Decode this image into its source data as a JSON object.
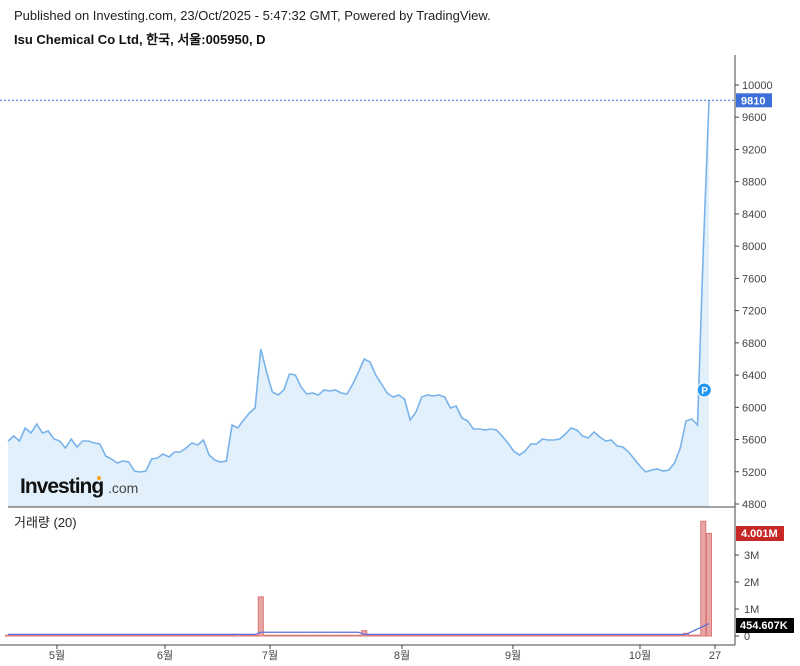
{
  "header": {
    "published": "Published on Investing.com, 23/Oct/2025 - 5:47:32 GMT, Powered by TradingView.",
    "title": "Isu Chemical Co Ltd, 한국, 서울:005950, D"
  },
  "logo": {
    "text": "Investing",
    "suffix": ".com"
  },
  "colors": {
    "line": "#7ab3ea",
    "fill": "#e1f0fa",
    "last_price_label": "#3d6fd8",
    "volume_bar": "#e8a7a7",
    "volume_label": "#c62828",
    "volume_ma": "#5a6fd8"
  },
  "chart_data": [
    {
      "type": "area",
      "ylim": [
        4800,
        10000
      ],
      "yticks": [
        4800,
        5200,
        5600,
        6000,
        6400,
        6800,
        7200,
        7600,
        8000,
        8400,
        8800,
        9200,
        9600,
        10000
      ],
      "xticks": [
        "5월",
        "6월",
        "7월",
        "8월",
        "9월",
        "10월",
        "27"
      ],
      "last_value_label": "9810",
      "marker": "P",
      "values": [
        5580,
        5644,
        5580,
        5743,
        5681,
        5793,
        5681,
        5706,
        5607,
        5582,
        5495,
        5607,
        5507,
        5582,
        5582,
        5557,
        5545,
        5396,
        5358,
        5309,
        5334,
        5321,
        5210,
        5197,
        5210,
        5358,
        5371,
        5420,
        5383,
        5445,
        5445,
        5495,
        5557,
        5532,
        5594,
        5408,
        5346,
        5321,
        5334,
        5780,
        5743,
        5842,
        5929,
        5991,
        6724,
        6438,
        6190,
        6153,
        6215,
        6413,
        6401,
        6252,
        6165,
        6178,
        6153,
        6215,
        6202,
        6215,
        6178,
        6165,
        6289,
        6438,
        6599,
        6562,
        6401,
        6289,
        6178,
        6128,
        6153,
        6103,
        5842,
        5942,
        6128,
        6153,
        6140,
        6153,
        6128,
        5991,
        6016,
        5867,
        5830,
        5731,
        5731,
        5718,
        5731,
        5718,
        5644,
        5557,
        5458,
        5408,
        5458,
        5545,
        5545,
        5607,
        5594,
        5594,
        5607,
        5669,
        5743,
        5718,
        5644,
        5619,
        5694,
        5631,
        5582,
        5594,
        5520,
        5507,
        5445,
        5358,
        5272,
        5197,
        5222,
        5234,
        5210,
        5222,
        5309,
        5495,
        5830,
        5855,
        5780,
        7952,
        9810
      ]
    },
    {
      "type": "bar",
      "title": "거래량 (20)",
      "ylim": [
        0,
        4.5
      ],
      "yticks": [
        "0",
        "1M",
        "2M",
        "3M"
      ],
      "last_volume_label": "4.001M",
      "ma_label": "454.607K",
      "unit": "M"
    }
  ]
}
